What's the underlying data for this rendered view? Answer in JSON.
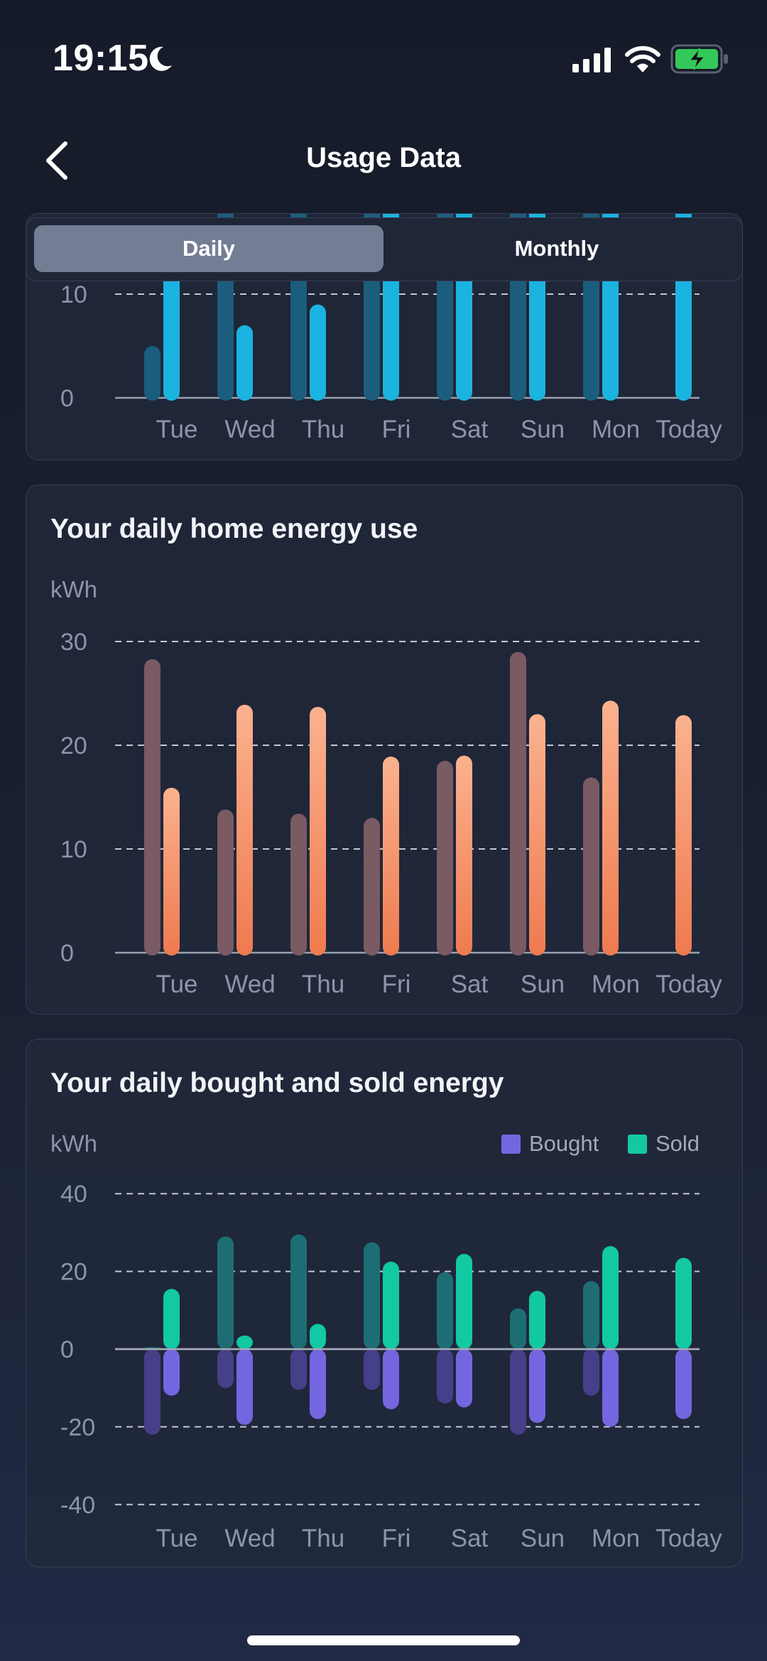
{
  "status_bar": {
    "time": "19:15"
  },
  "header": {
    "title": "Usage Data"
  },
  "segmented_control": {
    "options": [
      "Daily",
      "Monthly"
    ],
    "selected": "Daily"
  },
  "chart_data": [
    {
      "type": "bar",
      "categories": [
        "Tue",
        "Wed",
        "Thu",
        "Fri",
        "Sat",
        "Sun",
        "Mon",
        "Today"
      ],
      "yticks": [
        0,
        10
      ],
      "series": [
        {
          "values": [
            5,
            22,
            21,
            21,
            22,
            22,
            21,
            null
          ],
          "color": "#1c5d7d"
        },
        {
          "values": [
            17,
            7,
            9,
            22,
            22,
            22,
            22,
            21
          ],
          "color": "#1bb3df"
        }
      ]
    },
    {
      "type": "bar",
      "title": "Your daily home energy use",
      "ylabel": "kWh",
      "categories": [
        "Tue",
        "Wed",
        "Thu",
        "Fri",
        "Sat",
        "Sun",
        "Mon",
        "Today"
      ],
      "ylim": [
        0,
        30
      ],
      "yticks": [
        0,
        10,
        20,
        30
      ],
      "series": [
        {
          "values": [
            28.3,
            13.8,
            13.4,
            13.0,
            18.5,
            29.0,
            16.9,
            null
          ],
          "color": "#7a5a63"
        },
        {
          "values": [
            15.9,
            23.9,
            23.7,
            18.9,
            19.0,
            23.0,
            24.3,
            22.9
          ],
          "color": "#f79c74"
        }
      ]
    },
    {
      "type": "bar",
      "title": "Your daily bought and sold energy",
      "ylabel": "kWh",
      "categories": [
        "Tue",
        "Wed",
        "Thu",
        "Fri",
        "Sat",
        "Sun",
        "Mon",
        "Today"
      ],
      "ylim": [
        -40,
        40
      ],
      "yticks": [
        40,
        20,
        0,
        -20,
        -40
      ],
      "legend": [
        {
          "name": "Bought",
          "color": "#7466e0"
        },
        {
          "name": "Sold",
          "color": "#12c9a4"
        }
      ],
      "series": [
        {
          "name": "Sold",
          "period": "previous",
          "values": [
            0.5,
            29,
            29.5,
            27.5,
            19.8,
            10.5,
            17.5,
            null
          ],
          "color": "#1d6e74"
        },
        {
          "name": "Bought",
          "period": "previous",
          "values": [
            -22,
            -10,
            -10.5,
            -10.5,
            -14,
            -22,
            -12,
            null
          ],
          "color": "#463f89"
        },
        {
          "name": "Sold",
          "period": "current",
          "values": [
            15.5,
            3.5,
            6.5,
            22.5,
            24.5,
            15,
            26.5,
            23.5
          ],
          "color": "#12c9a4"
        },
        {
          "name": "Bought",
          "period": "current",
          "values": [
            -12,
            -19.5,
            -18,
            -15.5,
            -15,
            -19,
            -20,
            -18
          ],
          "color": "#7466e0"
        }
      ]
    }
  ]
}
